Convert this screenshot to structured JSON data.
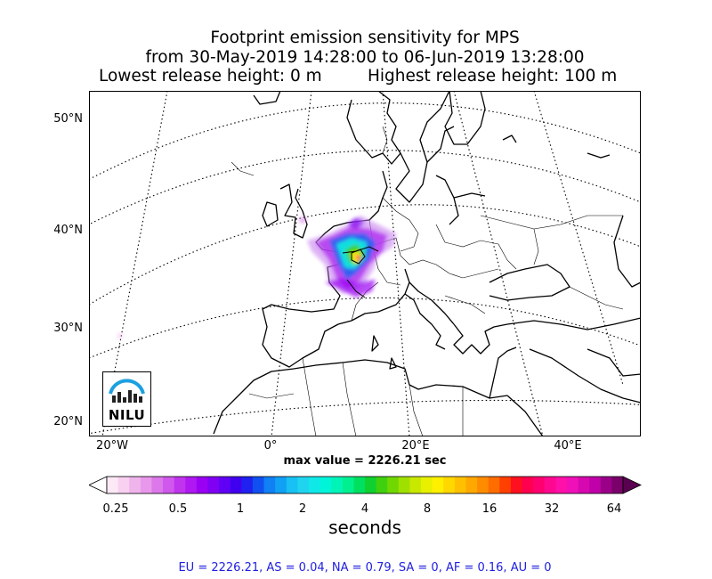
{
  "title": {
    "line1": "Footprint emission sensitivity for MPS",
    "line2": "from 30-May-2019 14:28:00 to 06-Jun-2019 13:28:00",
    "lowest": "Lowest release height: 0 m",
    "highest": "Highest release height: 100 m"
  },
  "map": {
    "lat_labels": [
      "50°N",
      "40°N",
      "30°N",
      "20°N"
    ],
    "lon_labels": [
      "20°W",
      "0°",
      "20°E",
      "40°E"
    ],
    "logo_text": "NILU",
    "max_value": "max value = 2226.21 sec"
  },
  "colorbar": {
    "ticks": [
      "0.25",
      "0.5",
      "1",
      "2",
      "4",
      "8",
      "16",
      "32",
      "64"
    ],
    "label": "seconds",
    "colors": [
      "#fde8f6",
      "#f8d0f0",
      "#f0b4ec",
      "#e898ea",
      "#dc78ea",
      "#d058ec",
      "#c034ee",
      "#b018f2",
      "#9a00f4",
      "#8000f4",
      "#6000f4",
      "#4000f0",
      "#2020f0",
      "#1050f0",
      "#1080f4",
      "#10a0f4",
      "#18c0f4",
      "#20d4f0",
      "#10e8e8",
      "#00f4d8",
      "#00f4b8",
      "#00f090",
      "#00e060",
      "#10d030",
      "#40d010",
      "#70d800",
      "#a0e000",
      "#c8e800",
      "#e8f000",
      "#fff000",
      "#ffd800",
      "#ffc000",
      "#ffa800",
      "#ff8c00",
      "#ff6c00",
      "#ff4000",
      "#ff1020",
      "#ff0050",
      "#ff0070",
      "#ff0890",
      "#ff10a8",
      "#f010b8",
      "#d808b0",
      "#c000a8",
      "#9a0088",
      "#7a006a"
    ],
    "extend_min_color": "#ffffff",
    "extend_max_color": "#5a0050"
  },
  "footer": "EU = 2226.21,  AS = 0.04,  NA = 0.79,  SA = 0,  AF = 0.16,  AU = 0"
}
